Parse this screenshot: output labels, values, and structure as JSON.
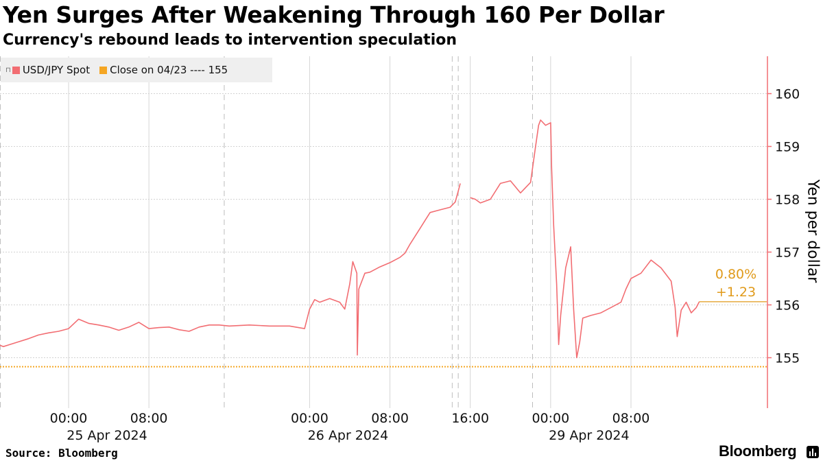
{
  "title": "Yen Surges After Weakening Through 160 Per Dollar",
  "subtitle": "Currency's rebound leads to intervention speculation",
  "legend": {
    "series_label": "USD/JPY Spot",
    "series_color": "#f26d72",
    "close_label": "Close on 04/23 ---- 155",
    "close_color": "#f5a623"
  },
  "ylabel": "Yen per dollar",
  "source": "Source: Bloomberg",
  "brand": "Bloomberg",
  "annotation": {
    "pct": "0.80%",
    "change": "+1.23",
    "color": "#e09a1a"
  },
  "chart_data": {
    "type": "line",
    "title": "Yen Surges After Weakening Through 160 Per Dollar",
    "subtitle": "Currency's rebound leads to intervention speculation",
    "xlabel": "",
    "ylabel": "Yen per dollar",
    "ylim": [
      154.1,
      160.7
    ],
    "yticks": [
      155,
      156,
      157,
      158,
      159,
      160
    ],
    "x_units": "hours since 00:00 25 Apr 2024 (Asia display time)",
    "x_ticks": [
      {
        "x": 0,
        "label": "00:00",
        "date": "25 Apr 2024"
      },
      {
        "x": 8,
        "label": "08:00",
        "date": ""
      },
      {
        "x": 24,
        "label": "00:00",
        "date": "26 Apr 2024"
      },
      {
        "x": 32,
        "label": "08:00",
        "date": ""
      },
      {
        "x": 40,
        "label": "16:00",
        "date": ""
      },
      {
        "x": 48,
        "label": "00:00",
        "date": "29 Apr 2024"
      },
      {
        "x": 56,
        "label": "08:00",
        "date": ""
      }
    ],
    "reference_line": {
      "name": "Close on 04/23",
      "y": 154.83
    },
    "series": [
      {
        "name": "USD/JPY Spot",
        "segments": [
          [
            [
              -7.0,
              155.25
            ],
            [
              -6.5,
              155.21
            ],
            [
              -6.0,
              155.24
            ],
            [
              -5.0,
              155.3
            ],
            [
              -4.0,
              155.36
            ],
            [
              -3.0,
              155.43
            ],
            [
              -2.0,
              155.47
            ],
            [
              -1.0,
              155.5
            ],
            [
              0.0,
              155.55
            ],
            [
              1.0,
              155.73
            ],
            [
              2.0,
              155.65
            ],
            [
              3.0,
              155.62
            ],
            [
              4.0,
              155.58
            ],
            [
              5.0,
              155.52
            ],
            [
              6.0,
              155.58
            ],
            [
              7.0,
              155.67
            ],
            [
              8.0,
              155.55
            ],
            [
              9.0,
              155.57
            ],
            [
              10.0,
              155.58
            ],
            [
              11.0,
              155.53
            ],
            [
              12.0,
              155.5
            ],
            [
              13.0,
              155.58
            ],
            [
              14.0,
              155.62
            ],
            [
              15.0,
              155.62
            ],
            [
              16.0,
              155.6
            ],
            [
              18.0,
              155.62
            ],
            [
              20.0,
              155.6
            ],
            [
              22.0,
              155.6
            ],
            [
              23.5,
              155.55
            ],
            [
              24.0,
              155.92
            ],
            [
              24.5,
              156.1
            ],
            [
              25.0,
              156.05
            ],
            [
              26.0,
              156.12
            ],
            [
              27.0,
              156.05
            ],
            [
              27.5,
              155.92
            ],
            [
              28.0,
              156.4
            ],
            [
              28.3,
              156.82
            ],
            [
              28.7,
              156.6
            ],
            [
              28.75,
              155.05
            ],
            [
              28.9,
              156.3
            ],
            [
              29.5,
              156.6
            ],
            [
              30.0,
              156.62
            ],
            [
              31.0,
              156.72
            ],
            [
              32.0,
              156.8
            ],
            [
              33.0,
              156.9
            ],
            [
              33.5,
              156.98
            ],
            [
              34.0,
              157.15
            ],
            [
              34.5,
              157.3
            ],
            [
              35.0,
              157.45
            ],
            [
              35.5,
              157.6
            ],
            [
              36.0,
              157.75
            ],
            [
              37.0,
              157.8
            ],
            [
              38.0,
              157.85
            ],
            [
              38.5,
              157.95
            ],
            [
              38.8,
              158.15
            ],
            [
              39.0,
              158.3
            ]
          ],
          [
            [
              40.0,
              158.03
            ],
            [
              40.5,
              158.0
            ],
            [
              41.0,
              157.93
            ],
            [
              42.0,
              158.0
            ],
            [
              43.0,
              158.3
            ],
            [
              44.0,
              158.35
            ],
            [
              45.0,
              158.12
            ],
            [
              46.0,
              158.32
            ],
            [
              46.5,
              159.0
            ],
            [
              46.8,
              159.4
            ],
            [
              47.0,
              159.5
            ],
            [
              47.5,
              159.4
            ],
            [
              48.0,
              159.45
            ],
            [
              48.1,
              158.6
            ],
            [
              48.3,
              157.5
            ],
            [
              48.6,
              156.4
            ],
            [
              48.8,
              155.25
            ],
            [
              49.0,
              155.8
            ],
            [
              49.5,
              156.7
            ],
            [
              50.0,
              157.1
            ],
            [
              50.3,
              155.9
            ],
            [
              50.6,
              155.0
            ],
            [
              50.9,
              155.3
            ],
            [
              51.2,
              155.75
            ],
            [
              52.0,
              155.8
            ],
            [
              53.0,
              155.85
            ],
            [
              54.0,
              155.95
            ],
            [
              55.0,
              156.05
            ],
            [
              55.5,
              156.3
            ],
            [
              56.0,
              156.5
            ],
            [
              57.0,
              156.6
            ],
            [
              58.0,
              156.85
            ],
            [
              59.0,
              156.7
            ],
            [
              60.0,
              156.45
            ],
            [
              60.4,
              155.95
            ],
            [
              60.6,
              155.4
            ],
            [
              61.0,
              155.9
            ],
            [
              61.5,
              156.05
            ],
            [
              62.0,
              155.85
            ],
            [
              62.5,
              155.95
            ],
            [
              62.8,
              156.06
            ]
          ]
        ]
      }
    ]
  }
}
